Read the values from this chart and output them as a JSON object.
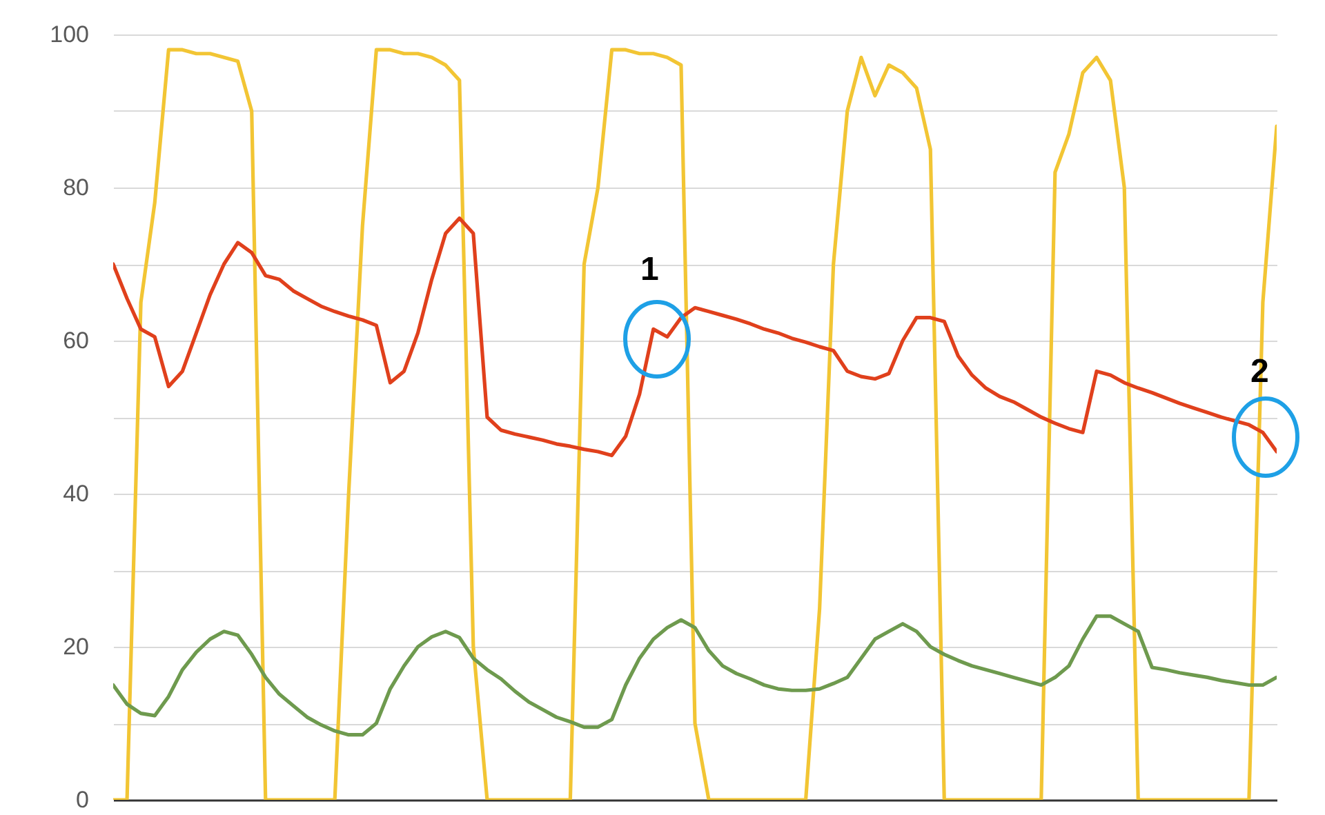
{
  "chart_data": {
    "type": "line",
    "categories": [
      null,
      null,
      null,
      null,
      null,
      null,
      null,
      null,
      null,
      null,
      null,
      null,
      null,
      null,
      null,
      null,
      null,
      null,
      null,
      null,
      null,
      null,
      null,
      null,
      null,
      null,
      null,
      null,
      null,
      null,
      null,
      null,
      null,
      null,
      null,
      null,
      null,
      null,
      null,
      null,
      null,
      null,
      null,
      null,
      null,
      null,
      null,
      null,
      null,
      null,
      null,
      null,
      null,
      null,
      null,
      null,
      null,
      null,
      null,
      null,
      null,
      null,
      null,
      null,
      null,
      null,
      null,
      null,
      null,
      null,
      null,
      null,
      null,
      null,
      null,
      null,
      null,
      null,
      null,
      null,
      null,
      null,
      null,
      null,
      null
    ],
    "series": [
      {
        "color": "#f2c534",
        "values": [
          0,
          0,
          65,
          78,
          98,
          98,
          97.5,
          97.5,
          97,
          96.5,
          90,
          0,
          0,
          0,
          0,
          0,
          0,
          40,
          75,
          98,
          98,
          97.5,
          97.5,
          97,
          96,
          94,
          20,
          0,
          0,
          0,
          0,
          0,
          0,
          0,
          70,
          80,
          98,
          98,
          97.5,
          97.5,
          97,
          96,
          10,
          0,
          0,
          0,
          0,
          0,
          0,
          0,
          0,
          25,
          70,
          90,
          97,
          92,
          96,
          95,
          93,
          85,
          0,
          0,
          0,
          0,
          0,
          0,
          0,
          0,
          82,
          87,
          95,
          97,
          94,
          80,
          0,
          0,
          0,
          0,
          0,
          0,
          0,
          0,
          0,
          65,
          88
        ]
      },
      {
        "color": "#e0401c",
        "values": [
          70,
          65.5,
          61.5,
          60.5,
          54,
          56,
          61,
          66,
          70,
          72.8,
          71.5,
          68.5,
          68,
          66.5,
          65.5,
          64.5,
          63.8,
          63.2,
          62.7,
          62,
          54.5,
          56,
          61,
          68,
          74,
          76,
          74,
          50,
          48.3,
          47.8,
          47.4,
          47,
          46.5,
          46.2,
          45.8,
          45.5,
          45,
          47.5,
          53,
          61.5,
          60.5,
          63,
          64.3,
          63.8,
          63.3,
          62.8,
          62.2,
          61.5,
          61,
          60.3,
          59.8,
          59.2,
          58.7,
          56,
          55.3,
          55,
          55.7,
          60,
          63,
          63,
          62.5,
          58,
          55.5,
          53.8,
          52.7,
          52,
          51,
          50,
          49.2,
          48.5,
          48,
          56,
          55.5,
          54.5,
          53.8,
          53.2,
          52.5,
          51.8,
          51.2,
          50.6,
          50,
          49.5,
          49,
          48,
          45.5
        ]
      },
      {
        "color": "#6e9a4e",
        "values": [
          15,
          12.5,
          11.3,
          11,
          13.5,
          17,
          19.3,
          21,
          22,
          21.5,
          19,
          16,
          13.8,
          12.3,
          10.8,
          9.8,
          9,
          8.5,
          8.5,
          10,
          14.5,
          17.5,
          20,
          21.3,
          22,
          21.2,
          18.5,
          17,
          15.8,
          14.2,
          12.8,
          11.8,
          10.8,
          10.2,
          9.5,
          9.5,
          10.5,
          15,
          18.5,
          21,
          22.5,
          23.5,
          22.5,
          19.5,
          17.5,
          16.5,
          15.8,
          15,
          14.5,
          14.3,
          14.3,
          14.5,
          15.2,
          16,
          18.5,
          21,
          22,
          23,
          22,
          20,
          19,
          18.2,
          17.5,
          17,
          16.5,
          16,
          15.5,
          15,
          16,
          17.5,
          21,
          24,
          24,
          23,
          22,
          17.3,
          17,
          16.6,
          16.3,
          16,
          15.6,
          15.3,
          15,
          15,
          16
        ]
      }
    ],
    "ylim": [
      0,
      100
    ],
    "yticks": [
      0,
      {
        "value": 10,
        "label": null
      },
      20,
      {
        "value": 30,
        "label": null
      },
      40,
      {
        "value": 50,
        "label": null
      },
      60,
      {
        "value": 70,
        "label": null
      },
      80,
      {
        "value": 90,
        "label": null
      },
      100
    ],
    "grid": "y",
    "tick_labels": "y",
    "line_style": "solid",
    "marker": "none",
    "annotations": [
      "1",
      "2"
    ]
  }
}
